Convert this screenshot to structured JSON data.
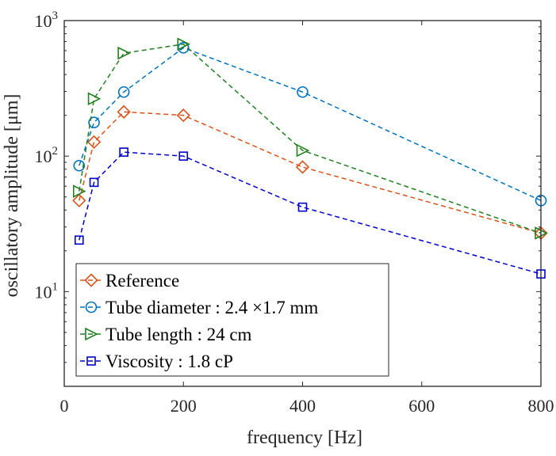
{
  "chart_data": {
    "type": "line",
    "title": "",
    "xlabel": "frequency [Hz]",
    "ylabel": "oscillatory amplitude [μm]",
    "xscale": "linear",
    "yscale": "log",
    "xlim": [
      0,
      800
    ],
    "ylim": [
      2,
      1000
    ],
    "xticks": [
      0,
      200,
      400,
      600,
      800
    ],
    "xtick_labels": [
      "0",
      "200",
      "400",
      "600",
      "800"
    ],
    "yticks": [
      10,
      100,
      1000
    ],
    "ytick_labels": [
      {
        "base": "10",
        "exp": "1"
      },
      {
        "base": "10",
        "exp": "2"
      },
      {
        "base": "10",
        "exp": "3"
      }
    ],
    "grid": false,
    "legend_position": "bottom-left",
    "x": [
      25,
      50,
      100,
      200,
      400,
      800
    ],
    "series": [
      {
        "name": "Reference",
        "marker": "diamond",
        "color": "#D95319",
        "line": "dashed",
        "values": [
          47,
          127,
          212,
          200,
          83,
          27
        ]
      },
      {
        "name": "Tube diameter : 2.4 ×1.7 mm",
        "marker": "circle",
        "color": "#0072BD",
        "line": "dashed",
        "values": [
          85,
          177,
          297,
          630,
          297,
          47
        ]
      },
      {
        "name": "Tube length : 24 cm",
        "marker": "triangle-right",
        "color": "#208020",
        "line": "dashed",
        "values": [
          55,
          265,
          575,
          670,
          110,
          27
        ]
      },
      {
        "name": "Viscosity : 1.8 cP",
        "marker": "square",
        "color": "#0000CC",
        "line": "dashed",
        "values": [
          24,
          64,
          107,
          100,
          42,
          13.5
        ]
      }
    ]
  }
}
